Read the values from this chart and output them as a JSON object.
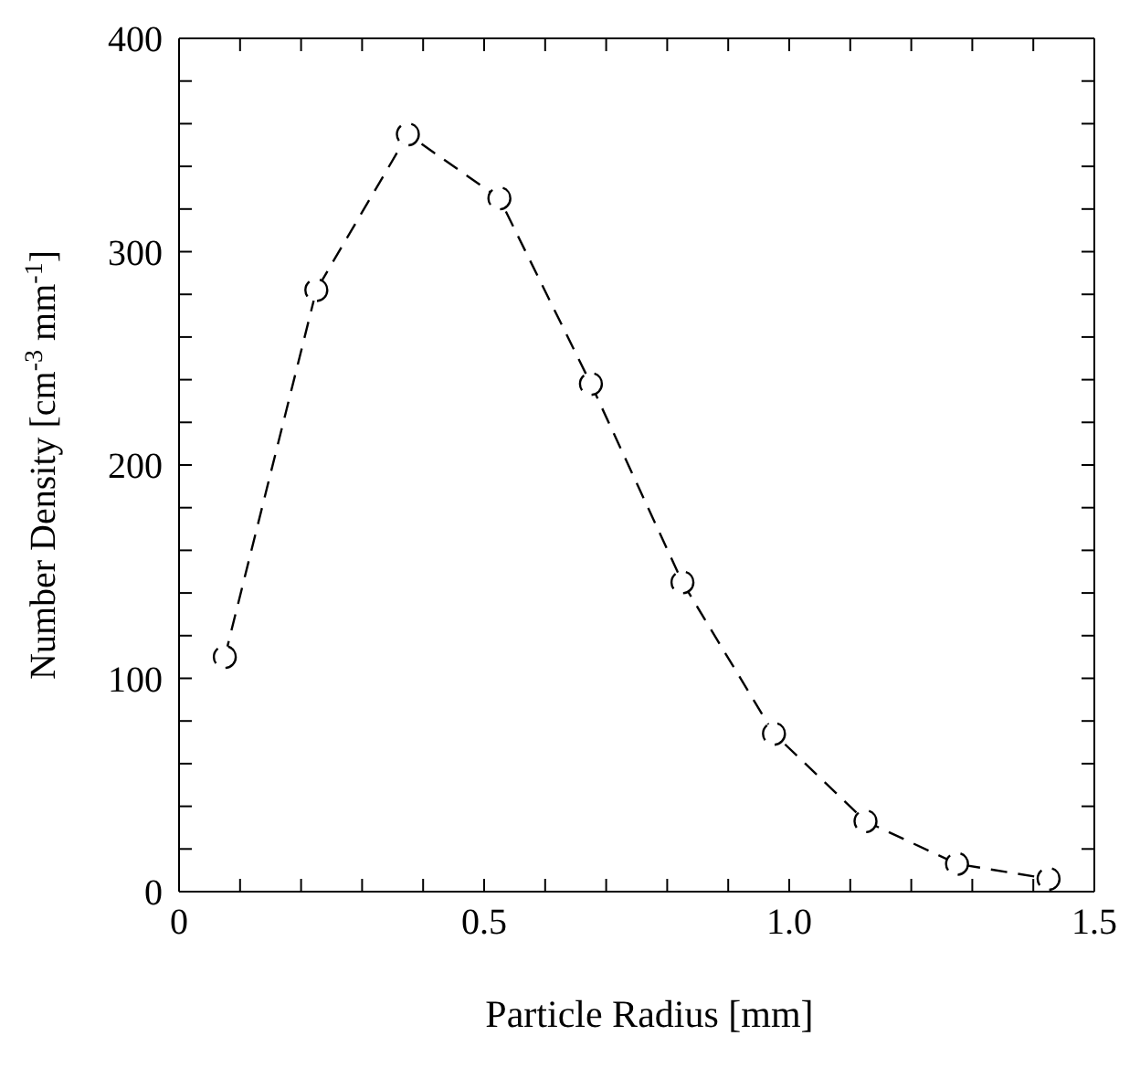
{
  "chart_data": {
    "type": "line",
    "xlabel": "Particle Radius [mm]",
    "ylabel": "Number Density [cm$^{-3}$ mm$^{-1}$]",
    "x": [
      0.075,
      0.225,
      0.375,
      0.525,
      0.675,
      0.825,
      0.975,
      1.125,
      1.275,
      1.425
    ],
    "series": [
      {
        "color": "#000000",
        "values": [
          110,
          282,
          355,
          325,
          238,
          145,
          74,
          33,
          13,
          6
        ]
      }
    ],
    "xlim": [
      0,
      1.5
    ],
    "xticks": [
      0,
      {
        "value": 0.1,
        "label": null
      },
      {
        "value": 0.2,
        "label": null
      },
      {
        "value": 0.3,
        "label": null
      },
      {
        "value": 0.4,
        "label": null
      },
      0.5,
      {
        "value": 0.6,
        "label": null
      },
      {
        "value": 0.7,
        "label": null
      },
      {
        "value": 0.8,
        "label": null
      },
      {
        "value": 0.9,
        "label": null
      },
      {
        "value": 1.0,
        "label": "1.0"
      },
      {
        "value": 1.1,
        "label": null
      },
      {
        "value": 1.2,
        "label": null
      },
      {
        "value": 1.3,
        "label": null
      },
      {
        "value": 1.4,
        "label": null
      },
      1.5
    ],
    "ylim": [
      0,
      400
    ],
    "yticks": [
      0,
      {
        "value": 20,
        "label": null
      },
      {
        "value": 40,
        "label": null
      },
      {
        "value": 60,
        "label": null
      },
      {
        "value": 80,
        "label": null
      },
      100,
      {
        "value": 120,
        "label": null
      },
      {
        "value": 140,
        "label": null
      },
      {
        "value": 160,
        "label": null
      },
      {
        "value": 180,
        "label": null
      },
      200,
      {
        "value": 220,
        "label": null
      },
      {
        "value": 240,
        "label": null
      },
      {
        "value": 260,
        "label": null
      },
      {
        "value": 280,
        "label": null
      },
      300,
      {
        "value": 320,
        "label": null
      },
      {
        "value": 340,
        "label": null
      },
      {
        "value": 360,
        "label": null
      },
      {
        "value": 380,
        "label": null
      },
      400
    ],
    "grid": false,
    "legend": false,
    "marker": "circle",
    "line_style": "dashed"
  }
}
